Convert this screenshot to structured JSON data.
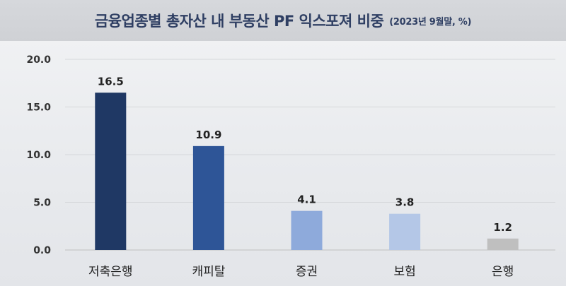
{
  "header": {
    "title": "금융업종별 총자산 내 부동산 PF 익스포져 비중",
    "subtitle": "(2023년 9월말, %)"
  },
  "chart_data": {
    "type": "bar",
    "title": "금융업종별 총자산 내 부동산 PF 익스포져 비중",
    "subtitle": "(2023년 9월말, %)",
    "categories": [
      "저축은행",
      "캐피탈",
      "증권",
      "보험",
      "은행"
    ],
    "values": [
      16.5,
      10.9,
      4.1,
      3.8,
      1.2
    ],
    "data_labels": [
      "16.5",
      "10.9",
      "4.1",
      "3.8",
      "1.2"
    ],
    "bar_colors": [
      "#1f3864",
      "#2e5597",
      "#8eaadb",
      "#b4c7e7",
      "#bfbfbf"
    ],
    "y_ticks": [
      "0.0",
      "5.0",
      "10.0",
      "15.0",
      "20.0"
    ],
    "ylim": [
      0,
      20
    ],
    "grid": true,
    "legend": "none",
    "xlabel": "",
    "ylabel": ""
  }
}
